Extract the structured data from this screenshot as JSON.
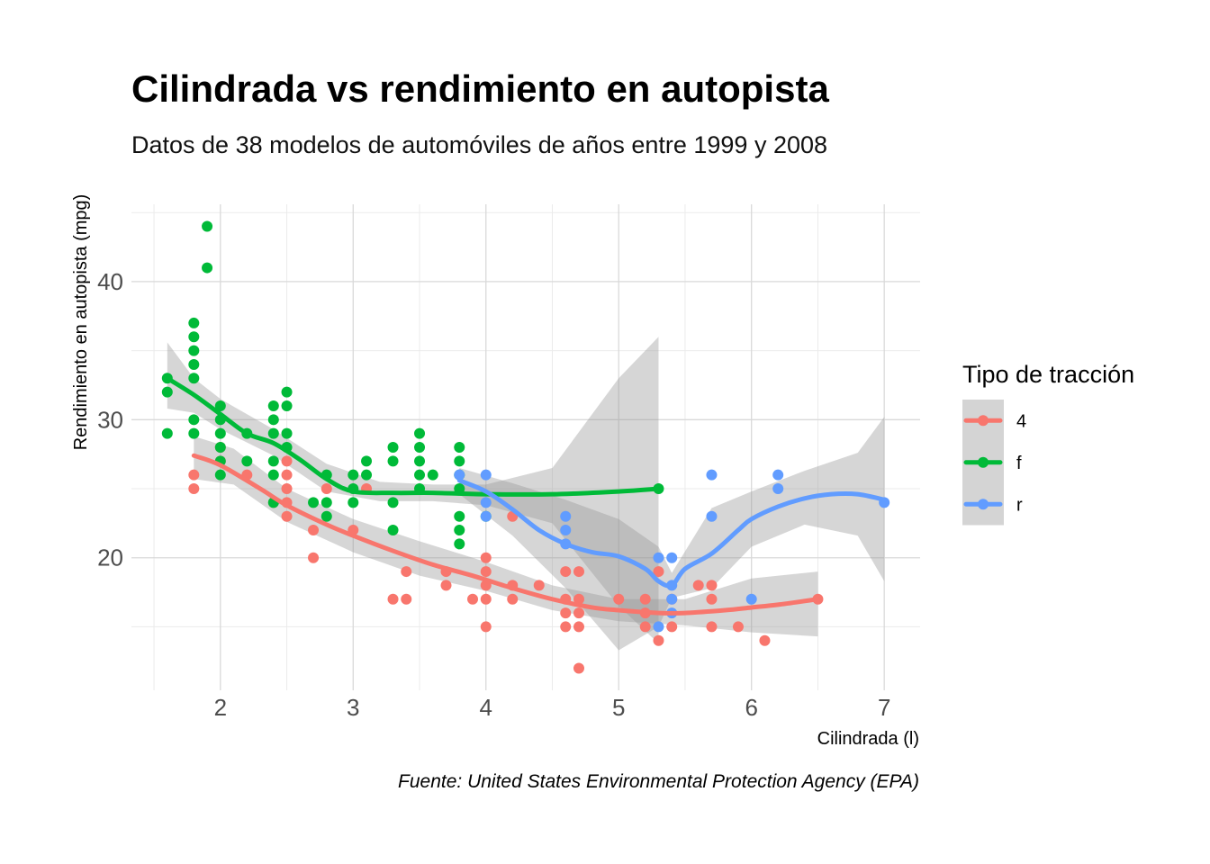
{
  "chart_data": {
    "type": "scatter",
    "title": "Cilindrada vs rendimiento en autopista",
    "subtitle": "Datos de 38 modelos de automóviles de años entre 1999 y 2008",
    "xlabel": "Cilindrada (l)",
    "ylabel": "Rendimiento en autopista (mpg)",
    "caption": "Fuente: United States Environmental Protection Agency (EPA)",
    "xlim": [
      1.33,
      7.27
    ],
    "ylim": [
      10.4,
      45.6
    ],
    "x_ticks": [
      "2",
      "3",
      "4",
      "5",
      "6",
      "7"
    ],
    "y_ticks": [
      "20",
      "30",
      "40"
    ],
    "x_tick_values": [
      2,
      3,
      4,
      5,
      6,
      7
    ],
    "y_tick_values": [
      20,
      30,
      40
    ],
    "grid": true,
    "legend": {
      "title": "Tipo de tracción",
      "placement": "right"
    },
    "series": [
      {
        "name": "4",
        "color": "#F8766D",
        "points": [
          [
            1.8,
            26
          ],
          [
            1.8,
            25
          ],
          [
            2.0,
            28
          ],
          [
            2.0,
            27
          ],
          [
            2.2,
            26
          ],
          [
            2.4,
            24
          ],
          [
            2.5,
            27
          ],
          [
            2.5,
            26
          ],
          [
            2.5,
            25
          ],
          [
            2.5,
            24
          ],
          [
            2.5,
            23
          ],
          [
            2.7,
            22
          ],
          [
            2.7,
            20
          ],
          [
            2.8,
            25
          ],
          [
            3.0,
            22
          ],
          [
            3.1,
            25
          ],
          [
            3.3,
            17
          ],
          [
            3.4,
            17
          ],
          [
            3.4,
            19
          ],
          [
            3.7,
            19
          ],
          [
            3.7,
            18
          ],
          [
            3.9,
            17
          ],
          [
            4.0,
            20
          ],
          [
            4.0,
            19
          ],
          [
            4.0,
            18
          ],
          [
            4.0,
            17
          ],
          [
            4.0,
            15
          ],
          [
            4.2,
            23
          ],
          [
            4.2,
            18
          ],
          [
            4.2,
            17
          ],
          [
            4.4,
            18
          ],
          [
            4.6,
            19
          ],
          [
            4.6,
            17
          ],
          [
            4.6,
            16
          ],
          [
            4.6,
            15
          ],
          [
            4.7,
            19
          ],
          [
            4.7,
            17
          ],
          [
            4.7,
            16
          ],
          [
            4.7,
            15
          ],
          [
            4.7,
            12
          ],
          [
            5.0,
            17
          ],
          [
            5.2,
            17
          ],
          [
            5.2,
            16
          ],
          [
            5.2,
            15
          ],
          [
            5.3,
            19
          ],
          [
            5.3,
            14
          ],
          [
            5.4,
            17
          ],
          [
            5.4,
            15
          ],
          [
            5.6,
            18
          ],
          [
            5.7,
            18
          ],
          [
            5.7,
            17
          ],
          [
            5.7,
            15
          ],
          [
            5.9,
            15
          ],
          [
            6.1,
            14
          ],
          [
            6.5,
            17
          ]
        ],
        "smooth": [
          [
            1.8,
            27.4
          ],
          [
            2.0,
            26.7
          ],
          [
            2.3,
            25.0
          ],
          [
            2.5,
            23.8
          ],
          [
            2.8,
            22.4
          ],
          [
            3.0,
            21.6
          ],
          [
            3.3,
            20.5
          ],
          [
            3.6,
            19.5
          ],
          [
            3.9,
            18.7
          ],
          [
            4.2,
            17.8
          ],
          [
            4.5,
            17.0
          ],
          [
            4.8,
            16.4
          ],
          [
            5.0,
            16.2
          ],
          [
            5.3,
            16.0
          ],
          [
            5.5,
            16.0
          ],
          [
            5.8,
            16.2
          ],
          [
            6.0,
            16.4
          ],
          [
            6.2,
            16.6
          ],
          [
            6.5,
            17.0
          ]
        ],
        "band_upper": [
          [
            1.8,
            28.8
          ],
          [
            2.1,
            27.9
          ],
          [
            2.5,
            25.0
          ],
          [
            3.0,
            22.8
          ],
          [
            3.5,
            21.2
          ],
          [
            4.0,
            19.7
          ],
          [
            4.5,
            18.0
          ],
          [
            5.0,
            17.0
          ],
          [
            5.5,
            17.0
          ],
          [
            6.0,
            18.5
          ],
          [
            6.5,
            19.0
          ]
        ],
        "band_lower": [
          [
            1.8,
            25.7
          ],
          [
            2.1,
            25.3
          ],
          [
            2.5,
            22.6
          ],
          [
            3.0,
            20.4
          ],
          [
            3.5,
            18.7
          ],
          [
            4.0,
            17.6
          ],
          [
            4.5,
            16.2
          ],
          [
            5.0,
            15.4
          ],
          [
            5.5,
            15.1
          ],
          [
            6.0,
            14.6
          ],
          [
            6.5,
            14.3
          ]
        ]
      },
      {
        "name": "f",
        "color": "#00BA38",
        "points": [
          [
            1.6,
            33
          ],
          [
            1.6,
            32
          ],
          [
            1.6,
            29
          ],
          [
            1.8,
            37
          ],
          [
            1.8,
            36
          ],
          [
            1.8,
            35
          ],
          [
            1.8,
            34
          ],
          [
            1.8,
            33
          ],
          [
            1.8,
            30
          ],
          [
            1.8,
            29
          ],
          [
            1.9,
            44
          ],
          [
            1.9,
            41
          ],
          [
            2.0,
            31
          ],
          [
            2.0,
            30
          ],
          [
            2.0,
            29
          ],
          [
            2.0,
            28
          ],
          [
            2.0,
            27
          ],
          [
            2.0,
            26
          ],
          [
            2.2,
            29
          ],
          [
            2.2,
            27
          ],
          [
            2.4,
            31
          ],
          [
            2.4,
            30
          ],
          [
            2.4,
            29
          ],
          [
            2.4,
            27
          ],
          [
            2.4,
            26
          ],
          [
            2.4,
            24
          ],
          [
            2.5,
            32
          ],
          [
            2.5,
            31
          ],
          [
            2.5,
            29
          ],
          [
            2.5,
            28
          ],
          [
            2.7,
            24
          ],
          [
            2.8,
            26
          ],
          [
            2.8,
            24
          ],
          [
            2.8,
            23
          ],
          [
            3.0,
            26
          ],
          [
            3.0,
            25
          ],
          [
            3.0,
            24
          ],
          [
            3.1,
            27
          ],
          [
            3.1,
            26
          ],
          [
            3.3,
            28
          ],
          [
            3.3,
            27
          ],
          [
            3.3,
            24
          ],
          [
            3.3,
            22
          ],
          [
            3.5,
            29
          ],
          [
            3.5,
            28
          ],
          [
            3.5,
            27
          ],
          [
            3.5,
            26
          ],
          [
            3.5,
            25
          ],
          [
            3.6,
            26
          ],
          [
            3.8,
            28
          ],
          [
            3.8,
            27
          ],
          [
            3.8,
            26
          ],
          [
            3.8,
            25
          ],
          [
            3.8,
            23
          ],
          [
            3.8,
            22
          ],
          [
            3.8,
            21
          ],
          [
            4.0,
            23
          ],
          [
            5.3,
            25
          ]
        ],
        "smooth": [
          [
            1.6,
            33.0
          ],
          [
            1.8,
            31.8
          ],
          [
            2.0,
            30.4
          ],
          [
            2.2,
            29.0
          ],
          [
            2.4,
            28.3
          ],
          [
            2.6,
            27.1
          ],
          [
            2.8,
            25.7
          ],
          [
            3.0,
            24.8
          ],
          [
            3.3,
            24.7
          ],
          [
            3.6,
            24.7
          ],
          [
            4.0,
            24.6
          ],
          [
            4.5,
            24.6
          ],
          [
            5.0,
            24.8
          ],
          [
            5.3,
            25.0
          ]
        ],
        "band_upper": [
          [
            1.6,
            35.6
          ],
          [
            1.8,
            33.0
          ],
          [
            2.0,
            31.5
          ],
          [
            2.4,
            29.3
          ],
          [
            2.8,
            26.8
          ],
          [
            3.2,
            25.5
          ],
          [
            3.6,
            25.3
          ],
          [
            4.0,
            25.3
          ],
          [
            4.5,
            26.5
          ],
          [
            5.0,
            33.0
          ],
          [
            5.3,
            36.0
          ]
        ],
        "band_lower": [
          [
            1.6,
            30.8
          ],
          [
            1.8,
            30.5
          ],
          [
            2.0,
            29.3
          ],
          [
            2.4,
            27.4
          ],
          [
            2.8,
            24.8
          ],
          [
            3.2,
            24.1
          ],
          [
            3.6,
            24.1
          ],
          [
            4.0,
            23.8
          ],
          [
            4.5,
            22.5
          ],
          [
            5.0,
            16.5
          ],
          [
            5.3,
            13.8
          ]
        ]
      },
      {
        "name": "r",
        "color": "#619CFF",
        "points": [
          [
            3.8,
            26
          ],
          [
            4.0,
            26
          ],
          [
            4.0,
            24
          ],
          [
            4.0,
            23
          ],
          [
            4.6,
            23
          ],
          [
            4.6,
            22
          ],
          [
            4.6,
            21
          ],
          [
            5.3,
            20
          ],
          [
            5.3,
            15
          ],
          [
            5.4,
            20
          ],
          [
            5.4,
            18
          ],
          [
            5.4,
            17
          ],
          [
            5.4,
            16
          ],
          [
            5.7,
            26
          ],
          [
            5.7,
            23
          ],
          [
            6.0,
            17
          ],
          [
            6.2,
            26
          ],
          [
            6.2,
            25
          ],
          [
            7.0,
            24
          ]
        ],
        "smooth": [
          [
            3.8,
            25.6
          ],
          [
            4.0,
            24.8
          ],
          [
            4.2,
            23.5
          ],
          [
            4.4,
            22.0
          ],
          [
            4.6,
            21.0
          ],
          [
            4.8,
            20.4
          ],
          [
            5.0,
            20.1
          ],
          [
            5.2,
            19.2
          ],
          [
            5.3,
            18.3
          ],
          [
            5.4,
            18.0
          ],
          [
            5.5,
            19.2
          ],
          [
            5.7,
            20.3
          ],
          [
            5.9,
            22.0
          ],
          [
            6.0,
            22.8
          ],
          [
            6.2,
            23.7
          ],
          [
            6.4,
            24.3
          ],
          [
            6.6,
            24.6
          ],
          [
            6.8,
            24.6
          ],
          [
            7.0,
            24.2
          ]
        ],
        "band_upper": [
          [
            3.8,
            26.5
          ],
          [
            4.2,
            25.4
          ],
          [
            4.6,
            24.2
          ],
          [
            5.0,
            22.8
          ],
          [
            5.3,
            20.8
          ],
          [
            5.4,
            18.9
          ],
          [
            5.7,
            23.6
          ],
          [
            6.0,
            24.8
          ],
          [
            6.4,
            26.3
          ],
          [
            6.8,
            27.6
          ],
          [
            7.0,
            30.2
          ]
        ],
        "band_lower": [
          [
            3.8,
            24.6
          ],
          [
            4.2,
            21.6
          ],
          [
            4.6,
            17.8
          ],
          [
            5.0,
            13.3
          ],
          [
            5.3,
            15.0
          ],
          [
            5.4,
            17.1
          ],
          [
            5.7,
            17.8
          ],
          [
            6.0,
            20.8
          ],
          [
            6.4,
            22.4
          ],
          [
            6.8,
            21.6
          ],
          [
            7.0,
            18.3
          ]
        ]
      }
    ]
  }
}
